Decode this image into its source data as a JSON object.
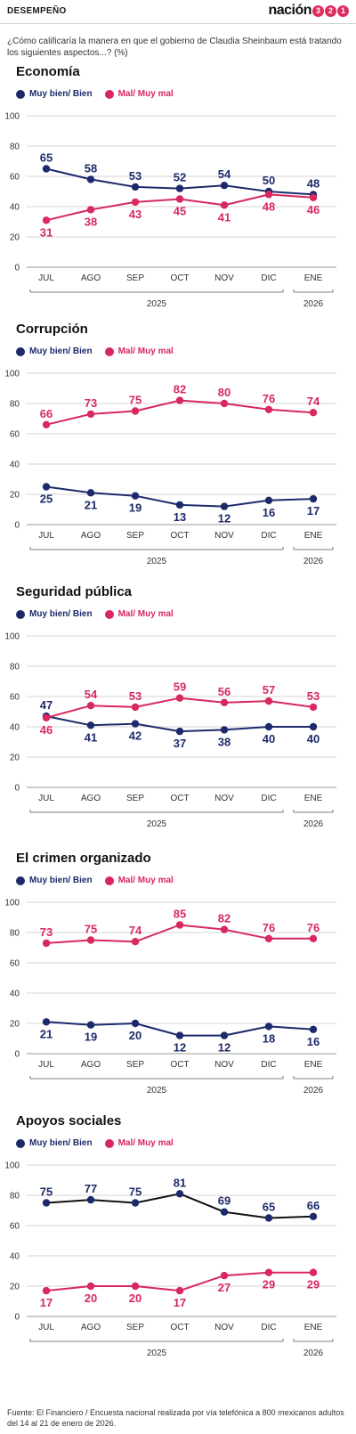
{
  "header": {
    "section_label": "DESEMPEÑO",
    "logo_word": "nación",
    "logo_digits": [
      "3",
      "2",
      "1"
    ]
  },
  "question": "¿Cómo calificaría la manera en que el gobierno de Claudia Sheinbaum está tratando los siguientes aspectos...? (%)",
  "colors": {
    "good": "#1c2a6b",
    "bad": "#d8285e",
    "good_line_apoyos": "#111111"
  },
  "legend": {
    "good": "Muy bien/ Bien",
    "bad": "Mal/ Muy mal"
  },
  "chart_data": [
    {
      "type": "line",
      "title": "Economía",
      "categories": [
        "JUL",
        "AGO",
        "SEP",
        "OCT",
        "NOV",
        "DIC",
        "ENE"
      ],
      "year_labels": [
        "2025",
        "2026"
      ],
      "ylim": [
        0,
        100
      ],
      "yticks": [
        0,
        20,
        40,
        60,
        80,
        100
      ],
      "grid": true,
      "series": [
        {
          "name": "Muy bien/ Bien",
          "values": [
            65,
            58,
            53,
            52,
            54,
            50,
            48
          ]
        },
        {
          "name": "Mal/ Muy mal",
          "values": [
            31,
            38,
            43,
            45,
            41,
            48,
            46
          ]
        }
      ]
    },
    {
      "type": "line",
      "title": "Corrupción",
      "categories": [
        "JUL",
        "AGO",
        "SEP",
        "OCT",
        "NOV",
        "DIC",
        "ENE"
      ],
      "year_labels": [
        "2025",
        "2026"
      ],
      "ylim": [
        0,
        100
      ],
      "yticks": [
        0,
        20,
        40,
        60,
        80,
        100
      ],
      "grid": true,
      "series": [
        {
          "name": "Muy bien/ Bien",
          "values": [
            25,
            21,
            19,
            13,
            12,
            16,
            17
          ]
        },
        {
          "name": "Mal/ Muy mal",
          "values": [
            66,
            73,
            75,
            82,
            80,
            76,
            74
          ]
        }
      ]
    },
    {
      "type": "line",
      "title": "Seguridad pública",
      "categories": [
        "JUL",
        "AGO",
        "SEP",
        "OCT",
        "NOV",
        "DIC",
        "ENE"
      ],
      "year_labels": [
        "2025",
        "2026"
      ],
      "ylim": [
        0,
        100
      ],
      "yticks": [
        0,
        20,
        40,
        60,
        80,
        100
      ],
      "grid": true,
      "series": [
        {
          "name": "Muy bien/ Bien",
          "values": [
            47,
            41,
            42,
            37,
            38,
            40,
            40
          ]
        },
        {
          "name": "Mal/ Muy mal",
          "values": [
            46,
            54,
            53,
            59,
            56,
            57,
            53
          ]
        }
      ]
    },
    {
      "type": "line",
      "title": "El crimen organizado",
      "categories": [
        "JUL",
        "AGO",
        "SEP",
        "OCT",
        "NOV",
        "DIC",
        "ENE"
      ],
      "year_labels": [
        "2025",
        "2026"
      ],
      "ylim": [
        0,
        100
      ],
      "yticks": [
        0,
        20,
        40,
        60,
        80,
        100
      ],
      "grid": true,
      "series": [
        {
          "name": "Muy bien/ Bien",
          "values": [
            21,
            19,
            20,
            12,
            12,
            18,
            16
          ]
        },
        {
          "name": "Mal/ Muy mal",
          "values": [
            73,
            75,
            74,
            85,
            82,
            76,
            76
          ]
        }
      ]
    },
    {
      "type": "line",
      "title": "Apoyos sociales",
      "categories": [
        "JUL",
        "AGO",
        "SEP",
        "OCT",
        "NOV",
        "DIC",
        "ENE"
      ],
      "year_labels": [
        "2025",
        "2026"
      ],
      "ylim": [
        0,
        100
      ],
      "yticks": [
        0,
        20,
        40,
        60,
        80,
        100
      ],
      "grid": true,
      "series": [
        {
          "name": "Muy bien/ Bien",
          "values": [
            75,
            77,
            75,
            81,
            69,
            65,
            66
          ]
        },
        {
          "name": "Mal/ Muy mal",
          "values": [
            17,
            20,
            20,
            17,
            27,
            29,
            29
          ]
        }
      ]
    }
  ],
  "footer": "Fuente: El Financiero / Encuesta nacional realizada por vía telefónica a 800 mexicanos adultos del 14 al 21 de enero de 2026."
}
